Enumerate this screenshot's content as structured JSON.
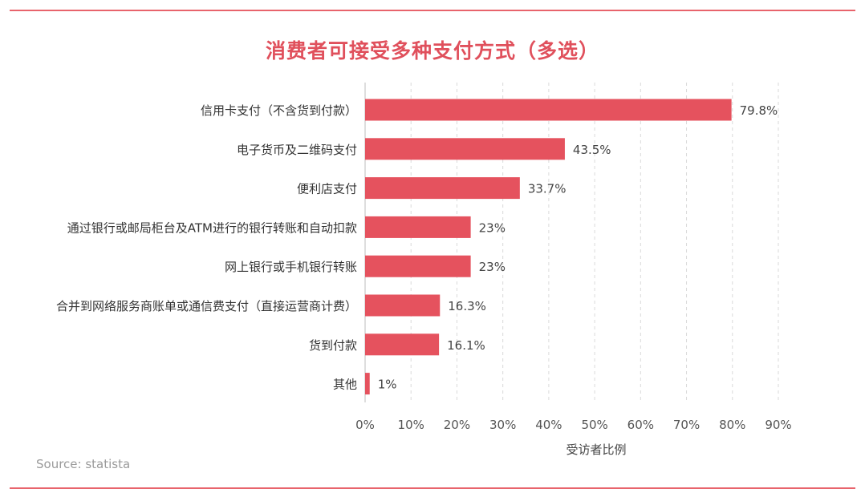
{
  "title": "消费者可接受多种支付方式（多选）",
  "source": "Source: statista",
  "chart_data": {
    "type": "bar",
    "orientation": "horizontal",
    "title": "消费者可接受多种支付方式（多选）",
    "xlabel": "受访者比例",
    "ylabel": "",
    "xlim": [
      0,
      90
    ],
    "x_ticks": [
      "0%",
      "10%",
      "20%",
      "30%",
      "40%",
      "50%",
      "60%",
      "70%",
      "80%",
      "90%"
    ],
    "grid": "vertical-dashed",
    "bar_color": "#e5525e",
    "categories": [
      "信用卡支付（不含货到付款）",
      "电子货币及二维码支付",
      "便利店支付",
      "通过银行或邮局柜台及ATM进行的银行转账和自动扣款",
      "网上银行或手机银行转账",
      "合并到网络服务商账单或通信费支付（直接运营商计费）",
      "货到付款",
      "其他"
    ],
    "values": [
      79.8,
      43.5,
      33.7,
      23,
      23,
      16.3,
      16.1,
      1
    ],
    "value_labels": [
      "79.8%",
      "43.5%",
      "33.7%",
      "23%",
      "23%",
      "16.3%",
      "16.1%",
      "1%"
    ]
  }
}
